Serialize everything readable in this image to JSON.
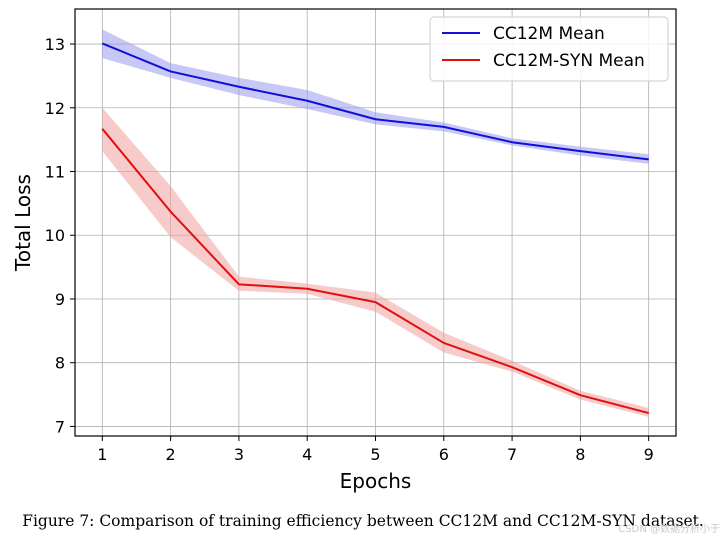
{
  "chart_data": {
    "type": "line",
    "title": "",
    "xlabel": "Epochs",
    "ylabel": "Total Loss",
    "x": [
      1,
      2,
      3,
      4,
      5,
      6,
      7,
      8,
      9
    ],
    "xlim": [
      0.6,
      9.4
    ],
    "ylim": [
      6.85,
      13.55
    ],
    "xticks": [
      1,
      2,
      3,
      4,
      5,
      6,
      7,
      8,
      9
    ],
    "yticks": [
      7,
      8,
      9,
      10,
      11,
      12,
      13
    ],
    "grid": true,
    "legend_position": "top-right",
    "series": [
      {
        "name": "CC12M Mean",
        "color": "#1010d8",
        "band_color": "#9a9af0",
        "values": [
          13.01,
          12.57,
          12.33,
          12.11,
          11.82,
          11.7,
          11.46,
          11.32,
          11.19
        ],
        "upper": [
          13.23,
          12.7,
          12.47,
          12.28,
          11.93,
          11.77,
          11.52,
          11.39,
          11.27
        ],
        "lower": [
          12.78,
          12.47,
          12.2,
          11.98,
          11.74,
          11.63,
          11.41,
          11.25,
          11.12
        ]
      },
      {
        "name": "CC12M-SYN Mean",
        "color": "#e01010",
        "band_color": "#f2a0a0",
        "values": [
          11.67,
          10.37,
          9.23,
          9.16,
          8.95,
          8.31,
          7.93,
          7.49,
          7.21
        ],
        "upper": [
          12.0,
          10.77,
          9.35,
          9.24,
          9.1,
          8.47,
          8.03,
          7.56,
          7.29
        ],
        "lower": [
          11.32,
          9.97,
          9.13,
          9.08,
          8.8,
          8.16,
          7.86,
          7.42,
          7.15
        ]
      }
    ]
  },
  "caption": "Figure 7: Comparison of training efficiency between CC12M and CC12M-SYN dataset.",
  "watermark": "CSDN @数据分析小于"
}
